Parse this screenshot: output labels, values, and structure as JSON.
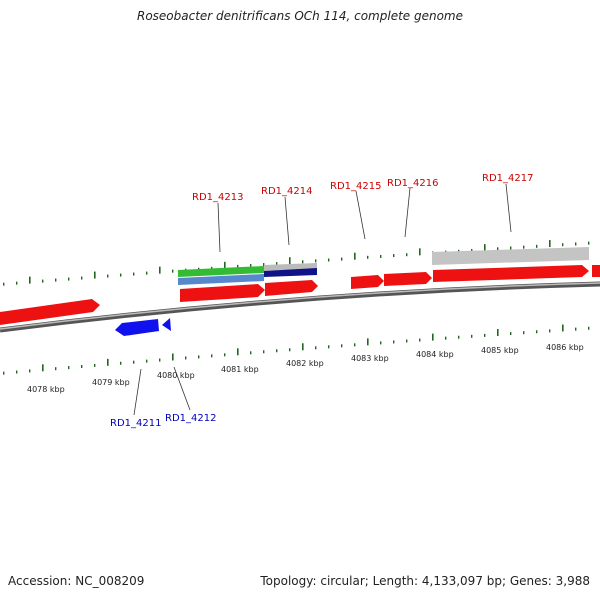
{
  "title": "Roseobacter denitrificans OCh 114, complete genome",
  "accession": "Accession: NC_008209",
  "summary": "Topology: circular; Length: 4,133,097 bp; Genes: 3,988",
  "colors": {
    "forward_gene": "#ee1111",
    "reverse_gene": "#1111ee",
    "forward_label": "#cc0000",
    "reverse_label": "#0000bb",
    "tick": "#226622",
    "backbone": "#777777"
  },
  "scale_labels": [
    "4078 kbp",
    "4079 kbp",
    "4080 kbp",
    "4081 kbp",
    "4082 kbp",
    "4083 kbp",
    "4084 kbp",
    "4085 kbp",
    "4086 kbp"
  ],
  "gene_labels_forward": [
    "RD1_4213",
    "RD1_4214",
    "RD1_4215",
    "RD1_4216",
    "RD1_4217"
  ],
  "gene_labels_reverse": [
    "RD1_4211",
    "RD1_4212"
  ]
}
